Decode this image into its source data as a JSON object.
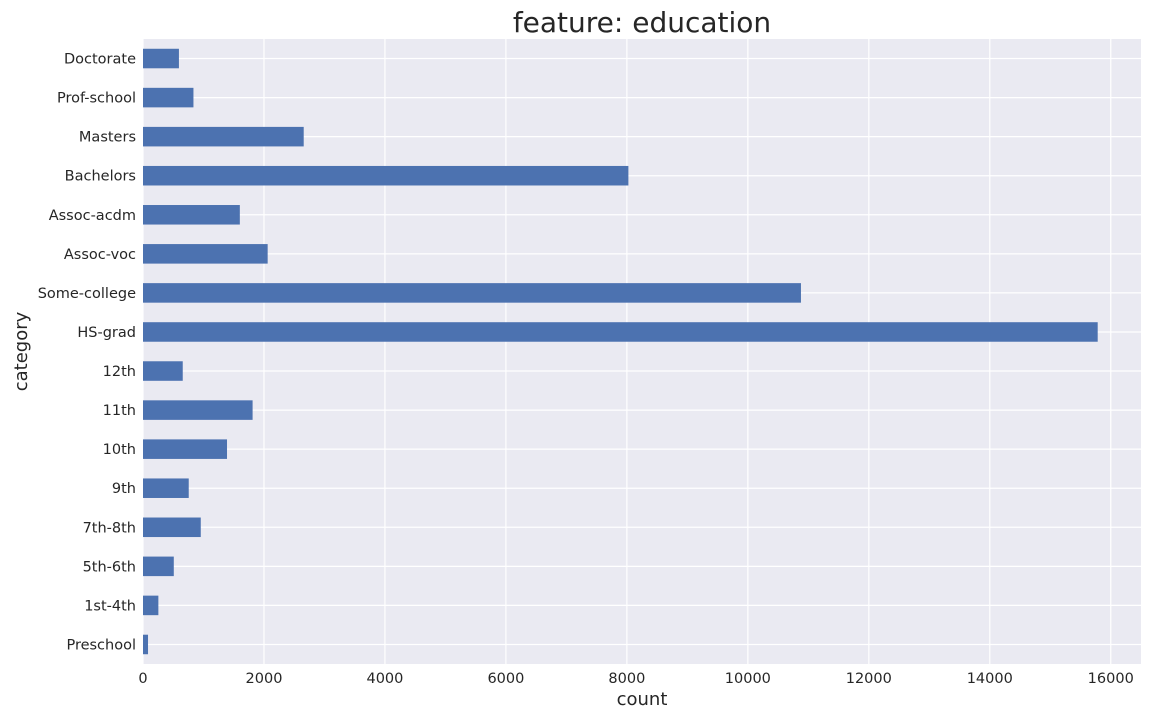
{
  "chart_data": {
    "type": "bar",
    "orientation": "horizontal",
    "title": "feature: education",
    "xlabel": "count",
    "ylabel": "category",
    "categories": [
      "Preschool",
      "1st-4th",
      "5th-6th",
      "7th-8th",
      "9th",
      "10th",
      "11th",
      "12th",
      "HS-grad",
      "Some-college",
      "Assoc-voc",
      "Assoc-acdm",
      "Bachelors",
      "Masters",
      "Prof-school",
      "Doctorate"
    ],
    "values": [
      83,
      254,
      509,
      955,
      756,
      1389,
      1812,
      657,
      15784,
      10878,
      2061,
      1601,
      8025,
      2657,
      834,
      594
    ],
    "xlim": [
      0,
      16500
    ],
    "xticks": [
      0,
      2000,
      4000,
      6000,
      8000,
      10000,
      12000,
      14000,
      16000
    ],
    "grid": true,
    "legend": "none",
    "colors": {
      "bar": "#4c72b0",
      "plot_background": "#eaeaf2",
      "grid": "#ffffff",
      "text": "#262626"
    }
  }
}
